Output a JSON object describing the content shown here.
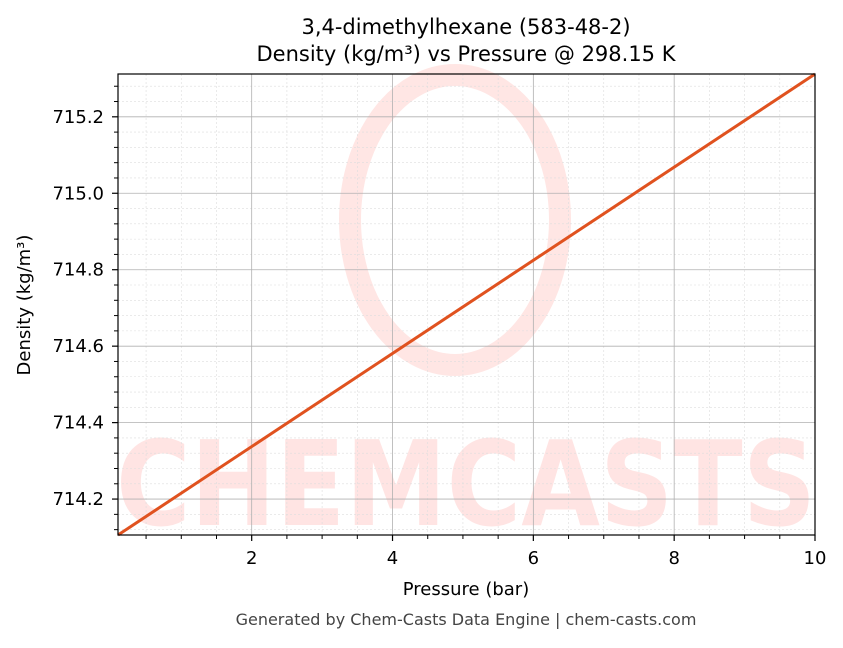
{
  "chart_data": {
    "type": "line",
    "title": "3,4-dimethylhexane (583-48-2)",
    "subtitle": "Density (kg/m³) vs Pressure @ 298.15 K",
    "xlabel": "Pressure (bar)",
    "ylabel": "Density (kg/m³)",
    "xlim": [
      0.101325,
      10
    ],
    "ylim": [
      714.106,
      715.312
    ],
    "xticks": [
      2,
      4,
      6,
      8,
      10
    ],
    "xtick_labels": [
      "2",
      "4",
      "6",
      "8",
      "10"
    ],
    "yticks": [
      714.2,
      714.4,
      714.6,
      714.8,
      715.0,
      715.2
    ],
    "ytick_labels": [
      "714.2",
      "714.4",
      "714.6",
      "714.8",
      "715.0",
      "715.2"
    ],
    "grid": true,
    "series": [
      {
        "x": [
          0.101325,
          10
        ],
        "y": [
          714.106,
          715.312
        ],
        "color": "#e0521f"
      }
    ]
  },
  "watermark": "CHEMCASTS",
  "footer": "Generated by Chem-Casts Data Engine | chem-casts.com"
}
